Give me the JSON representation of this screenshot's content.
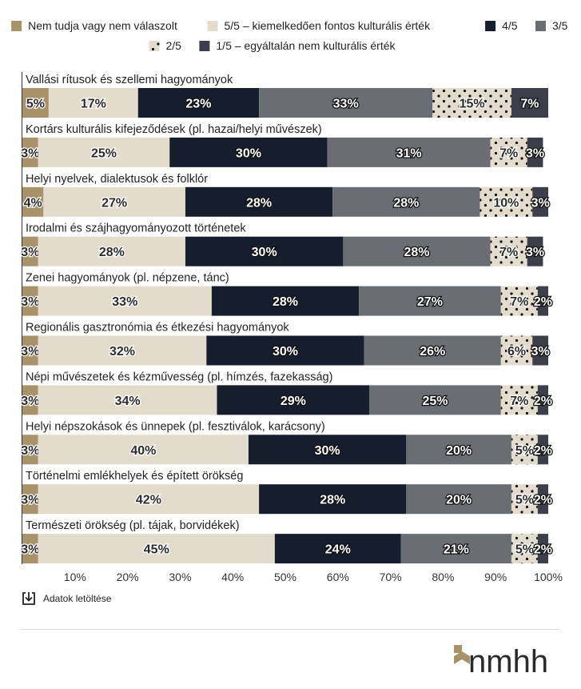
{
  "chart_data": {
    "type": "bar",
    "orientation": "horizontal",
    "stacked": true,
    "normalized": true,
    "legend": {
      "position": "top"
    },
    "xlim": [
      0,
      100
    ],
    "x_ticks": [
      "10%",
      "20%",
      "30%",
      "40%",
      "50%",
      "60%",
      "70%",
      "80%",
      "90%",
      "100%"
    ],
    "categories": [
      "Vallási rítusok és szellemi hagyományok",
      "Kortárs kulturális kifejeződések (pl. hazai/helyi művészek)",
      "Helyi nyelvek, dialektusok és folklór",
      "Irodalmi és szájhagyományozott történetek",
      "Zenei hagyományok (pl. népzene, tánc)",
      "Regionális gasztronómia és étkezési hagyományok",
      "Népi művészetek és kézművesség (pl. hímzés, fazekasság)",
      "Helyi népszokások és ünnepek (pl. fesztiválok, karácsony)",
      "Történelmi emlékhelyek és épített örökség",
      "Természeti örökség (pl. tájak, borvidékek)"
    ],
    "series": [
      {
        "name": "Nem tudja vagy nem válaszolt",
        "color": "#a89269",
        "pattern": "solid",
        "values": [
          5,
          3,
          4,
          3,
          3,
          3,
          3,
          3,
          3,
          3
        ]
      },
      {
        "name": "5/5 – kiemelkedően fontos kulturális érték",
        "color": "#e3dccd",
        "pattern": "solid",
        "values": [
          17,
          25,
          27,
          28,
          33,
          32,
          34,
          40,
          42,
          45
        ]
      },
      {
        "name": "4/5",
        "color": "#161e2e",
        "pattern": "solid",
        "values": [
          23,
          30,
          28,
          30,
          28,
          30,
          29,
          30,
          28,
          24
        ]
      },
      {
        "name": "3/5",
        "color": "#6a6d73",
        "pattern": "solid",
        "values": [
          33,
          31,
          28,
          28,
          27,
          26,
          25,
          20,
          20,
          21
        ]
      },
      {
        "name": "2/5",
        "color": "#e3dccd",
        "pattern": "dots",
        "values": [
          15,
          7,
          10,
          7,
          7,
          6,
          7,
          5,
          5,
          5
        ]
      },
      {
        "name": "1/5 – egyáltalán nem kulturális érték",
        "color": "#3c3f49",
        "pattern": "solid",
        "values": [
          7,
          3,
          3,
          3,
          2,
          3,
          2,
          2,
          2,
          2
        ]
      }
    ],
    "value_suffix": "%"
  },
  "footer": {
    "download_label": "Adatok letöltése",
    "download_icon": "download-icon"
  },
  "logo": {
    "text": "nmhh"
  }
}
